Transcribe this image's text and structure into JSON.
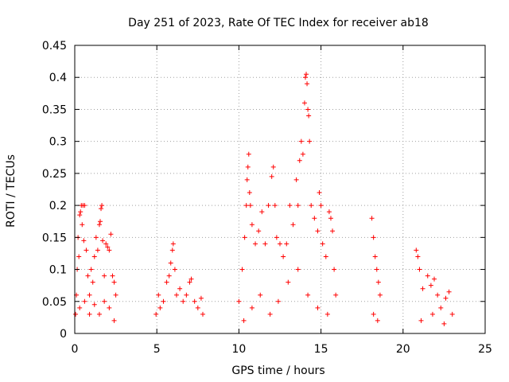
{
  "chart_data": {
    "type": "scatter",
    "title": "Day 251 of 2023, Rate Of TEC Index for receiver ab18",
    "xlabel": "GPS time / hours",
    "ylabel": "ROTI / TECUs",
    "xlim": [
      0,
      25
    ],
    "ylim": [
      0,
      0.45
    ],
    "x_ticks": [
      0,
      5,
      10,
      15,
      20,
      25
    ],
    "x_tick_labels": [
      "0",
      "5",
      "10",
      "15",
      "20",
      "25"
    ],
    "y_ticks": [
      0,
      0.05,
      0.1,
      0.15,
      0.2,
      0.25,
      0.3,
      0.35,
      0.4,
      0.45
    ],
    "y_tick_labels": [
      "0",
      "0.05",
      "0.1",
      "0.15",
      "0.2",
      "0.25",
      "0.3",
      "0.35",
      "0.4",
      "0.45"
    ],
    "grid": true,
    "marker": "+",
    "color": "#ff0000",
    "series": [
      {
        "name": "ROTI",
        "points": [
          [
            0.05,
            0.03
          ],
          [
            0.1,
            0.06
          ],
          [
            0.15,
            0.1
          ],
          [
            0.2,
            0.15
          ],
          [
            0.25,
            0.12
          ],
          [
            0.3,
            0.185
          ],
          [
            0.35,
            0.19
          ],
          [
            0.4,
            0.2
          ],
          [
            0.45,
            0.17
          ],
          [
            0.5,
            0.2
          ],
          [
            0.55,
            0.145
          ],
          [
            0.6,
            0.2
          ],
          [
            0.7,
            0.13
          ],
          [
            0.8,
            0.09
          ],
          [
            0.9,
            0.06
          ],
          [
            1.0,
            0.1
          ],
          [
            1.1,
            0.08
          ],
          [
            1.2,
            0.12
          ],
          [
            1.3,
            0.15
          ],
          [
            1.4,
            0.13
          ],
          [
            1.5,
            0.17
          ],
          [
            1.55,
            0.175
          ],
          [
            1.6,
            0.195
          ],
          [
            1.65,
            0.2
          ],
          [
            1.7,
            0.145
          ],
          [
            1.8,
            0.09
          ],
          [
            1.9,
            0.14
          ],
          [
            2.0,
            0.135
          ],
          [
            2.1,
            0.13
          ],
          [
            2.2,
            0.155
          ],
          [
            2.3,
            0.09
          ],
          [
            2.4,
            0.08
          ],
          [
            2.5,
            0.06
          ],
          [
            0.3,
            0.04
          ],
          [
            0.6,
            0.05
          ],
          [
            0.9,
            0.03
          ],
          [
            1.2,
            0.045
          ],
          [
            1.5,
            0.03
          ],
          [
            1.8,
            0.05
          ],
          [
            2.1,
            0.04
          ],
          [
            2.4,
            0.02
          ],
          [
            4.95,
            0.03
          ],
          [
            5.1,
            0.06
          ],
          [
            5.2,
            0.04
          ],
          [
            5.4,
            0.05
          ],
          [
            5.6,
            0.08
          ],
          [
            5.75,
            0.09
          ],
          [
            5.85,
            0.11
          ],
          [
            5.95,
            0.13
          ],
          [
            6.0,
            0.14
          ],
          [
            6.1,
            0.1
          ],
          [
            6.2,
            0.06
          ],
          [
            6.4,
            0.07
          ],
          [
            6.6,
            0.05
          ],
          [
            6.8,
            0.06
          ],
          [
            7.0,
            0.08
          ],
          [
            7.1,
            0.085
          ],
          [
            7.3,
            0.05
          ],
          [
            7.5,
            0.04
          ],
          [
            7.7,
            0.055
          ],
          [
            7.8,
            0.03
          ],
          [
            10.0,
            0.05
          ],
          [
            10.2,
            0.1
          ],
          [
            10.35,
            0.15
          ],
          [
            10.45,
            0.2
          ],
          [
            10.5,
            0.24
          ],
          [
            10.55,
            0.26
          ],
          [
            10.6,
            0.28
          ],
          [
            10.65,
            0.22
          ],
          [
            10.7,
            0.2
          ],
          [
            10.8,
            0.17
          ],
          [
            11.0,
            0.14
          ],
          [
            11.2,
            0.16
          ],
          [
            11.4,
            0.19
          ],
          [
            11.6,
            0.14
          ],
          [
            11.8,
            0.2
          ],
          [
            12.0,
            0.245
          ],
          [
            12.1,
            0.26
          ],
          [
            12.2,
            0.2
          ],
          [
            12.3,
            0.15
          ],
          [
            12.5,
            0.14
          ],
          [
            12.7,
            0.12
          ],
          [
            12.9,
            0.14
          ],
          [
            13.1,
            0.2
          ],
          [
            13.3,
            0.17
          ],
          [
            13.5,
            0.24
          ],
          [
            13.6,
            0.2
          ],
          [
            13.7,
            0.27
          ],
          [
            13.8,
            0.3
          ],
          [
            13.9,
            0.28
          ],
          [
            14.0,
            0.36
          ],
          [
            14.05,
            0.4
          ],
          [
            14.1,
            0.405
          ],
          [
            14.15,
            0.39
          ],
          [
            14.2,
            0.35
          ],
          [
            14.25,
            0.34
          ],
          [
            14.3,
            0.3
          ],
          [
            14.4,
            0.2
          ],
          [
            14.6,
            0.18
          ],
          [
            14.8,
            0.16
          ],
          [
            14.9,
            0.22
          ],
          [
            15.0,
            0.2
          ],
          [
            15.1,
            0.14
          ],
          [
            15.3,
            0.12
          ],
          [
            15.5,
            0.19
          ],
          [
            15.6,
            0.18
          ],
          [
            15.7,
            0.16
          ],
          [
            15.8,
            0.1
          ],
          [
            15.9,
            0.06
          ],
          [
            10.3,
            0.02
          ],
          [
            10.8,
            0.04
          ],
          [
            11.3,
            0.06
          ],
          [
            11.9,
            0.03
          ],
          [
            12.4,
            0.05
          ],
          [
            13.0,
            0.08
          ],
          [
            13.6,
            0.1
          ],
          [
            14.2,
            0.06
          ],
          [
            14.8,
            0.04
          ],
          [
            15.4,
            0.03
          ],
          [
            18.1,
            0.18
          ],
          [
            18.2,
            0.15
          ],
          [
            18.3,
            0.12
          ],
          [
            18.4,
            0.1
          ],
          [
            18.5,
            0.08
          ],
          [
            18.6,
            0.06
          ],
          [
            18.2,
            0.03
          ],
          [
            18.45,
            0.02
          ],
          [
            20.8,
            0.13
          ],
          [
            20.9,
            0.12
          ],
          [
            21.0,
            0.1
          ],
          [
            21.2,
            0.07
          ],
          [
            21.5,
            0.09
          ],
          [
            21.7,
            0.075
          ],
          [
            21.9,
            0.085
          ],
          [
            22.1,
            0.06
          ],
          [
            22.3,
            0.04
          ],
          [
            22.6,
            0.055
          ],
          [
            22.8,
            0.065
          ],
          [
            23.0,
            0.03
          ],
          [
            21.1,
            0.02
          ],
          [
            21.8,
            0.03
          ],
          [
            22.5,
            0.015
          ]
        ]
      }
    ]
  }
}
